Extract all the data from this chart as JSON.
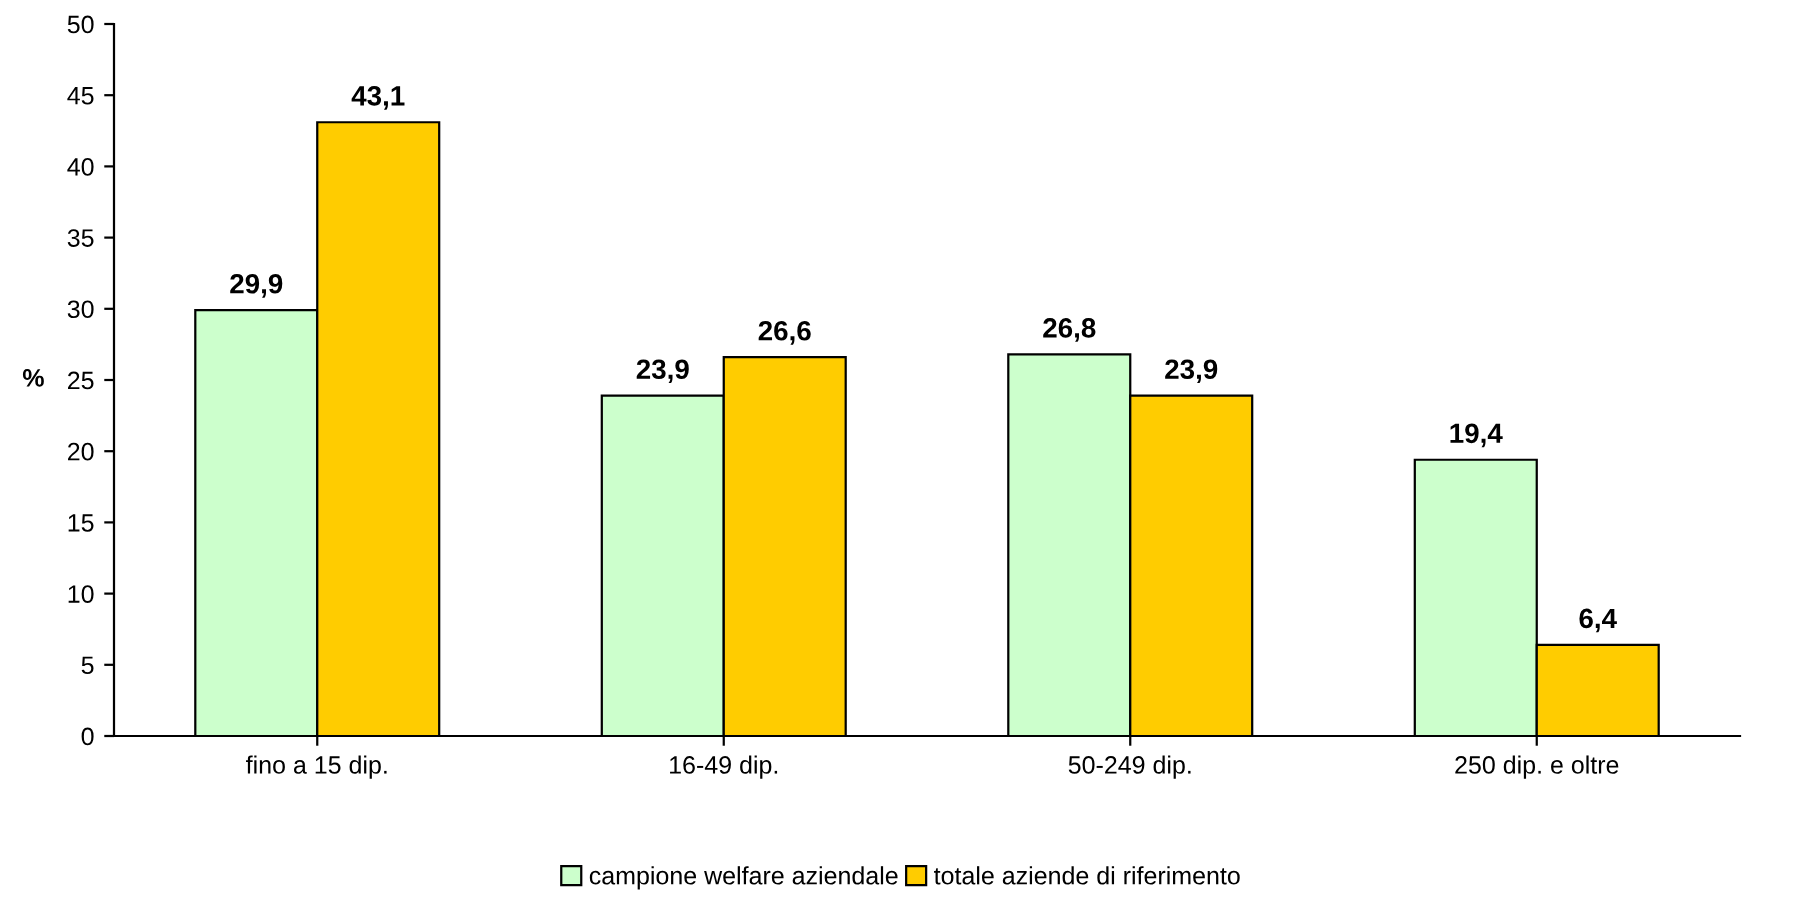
{
  "chart_data": {
    "type": "bar",
    "ylabel": "%",
    "categories": [
      "fino a 15 dip.",
      "16-49 dip.",
      "50-249 dip.",
      "250 dip. e oltre"
    ],
    "series": [
      {
        "name": "campione welfare aziendale",
        "color": "#ccffcc",
        "values": [
          29.9,
          23.9,
          26.8,
          19.4
        ],
        "value_labels": [
          "29,9",
          "23,9",
          "26,8",
          "19,4"
        ]
      },
      {
        "name": "totale aziende di riferimento",
        "color": "#ffcc00",
        "values": [
          43.1,
          26.6,
          23.9,
          6.4
        ],
        "value_labels": [
          "43,1",
          "26,6",
          "23,9",
          "6,4"
        ]
      }
    ],
    "ylim": [
      0,
      50
    ],
    "yticks": [
      0,
      5,
      10,
      15,
      20,
      25,
      30,
      35,
      40,
      45,
      50
    ],
    "grid": false,
    "legend": "bottom"
  }
}
